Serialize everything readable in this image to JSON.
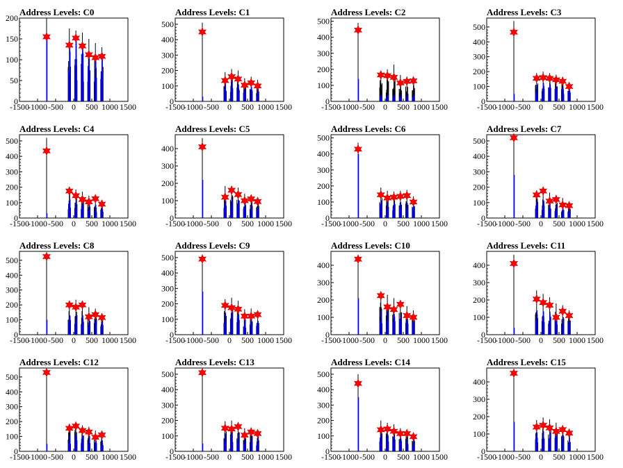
{
  "x_tick_labels": [
    "-1500",
    "-1000",
    "-500",
    "0",
    "500",
    "1000",
    "1500"
  ],
  "colors": {
    "raw": "#000000",
    "selected": "#0000ff",
    "marker": "#ff0000"
  },
  "chart_data": [
    {
      "type": "bar",
      "title": "Address Levels: C0",
      "xlim": [
        -1500,
        1500
      ],
      "ylim": [
        0,
        200
      ],
      "yticks": [
        0,
        50,
        100,
        150,
        200
      ],
      "peaks": [
        {
          "x": -750,
          "black": 200,
          "blue": 150,
          "star": 155
        },
        {
          "x": -120,
          "black": 175,
          "blue": 140,
          "star": 135
        },
        {
          "x": 60,
          "black": 170,
          "blue": 145,
          "star": 152
        },
        {
          "x": 240,
          "black": 165,
          "blue": 130,
          "star": 133
        },
        {
          "x": 420,
          "black": 150,
          "blue": 110,
          "star": 112
        },
        {
          "x": 600,
          "black": 140,
          "blue": 100,
          "star": 105
        },
        {
          "x": 780,
          "black": 130,
          "blue": 105,
          "star": 108
        }
      ]
    },
    {
      "type": "bar",
      "title": "Address Levels: C1",
      "xlim": [
        -1500,
        1500
      ],
      "ylim": [
        0,
        540
      ],
      "yticks": [
        0,
        100,
        200,
        300,
        400,
        500
      ],
      "peaks": [
        {
          "x": -750,
          "black": 510,
          "blue": 30,
          "star": 450
        },
        {
          "x": -120,
          "black": 190,
          "blue": 120,
          "star": 135
        },
        {
          "x": 60,
          "black": 210,
          "blue": 130,
          "star": 160
        },
        {
          "x": 240,
          "black": 200,
          "blue": 110,
          "star": 145
        },
        {
          "x": 420,
          "black": 150,
          "blue": 85,
          "star": 105
        },
        {
          "x": 600,
          "black": 160,
          "blue": 95,
          "star": 120
        },
        {
          "x": 780,
          "black": 140,
          "blue": 70,
          "star": 100
        }
      ]
    },
    {
      "type": "bar",
      "title": "Address Levels: C2",
      "xlim": [
        -1500,
        1500
      ],
      "ylim": [
        0,
        520
      ],
      "yticks": [
        0,
        100,
        200,
        300,
        400,
        500
      ],
      "peaks": [
        {
          "x": -750,
          "black": 490,
          "blue": 140,
          "star": 445
        },
        {
          "x": -120,
          "black": 190,
          "blue": 40,
          "star": 165
        },
        {
          "x": 60,
          "black": 200,
          "blue": 40,
          "star": 160
        },
        {
          "x": 240,
          "black": 230,
          "blue": 40,
          "star": 150
        },
        {
          "x": 420,
          "black": 165,
          "blue": 40,
          "star": 115
        },
        {
          "x": 600,
          "black": 155,
          "blue": 40,
          "star": 125
        },
        {
          "x": 780,
          "black": 145,
          "blue": 40,
          "star": 128
        }
      ]
    },
    {
      "type": "bar",
      "title": "Address Levels: C3",
      "xlim": [
        -1500,
        1500
      ],
      "ylim": [
        0,
        560
      ],
      "yticks": [
        0,
        100,
        200,
        300,
        400,
        500
      ],
      "peaks": [
        {
          "x": -750,
          "black": 540,
          "blue": 50,
          "star": 465
        },
        {
          "x": -120,
          "black": 190,
          "blue": 110,
          "star": 155
        },
        {
          "x": 60,
          "black": 200,
          "blue": 120,
          "star": 160
        },
        {
          "x": 240,
          "black": 190,
          "blue": 110,
          "star": 155
        },
        {
          "x": 420,
          "black": 180,
          "blue": 100,
          "star": 145
        },
        {
          "x": 600,
          "black": 165,
          "blue": 95,
          "star": 135
        },
        {
          "x": 780,
          "black": 130,
          "blue": 80,
          "star": 100
        }
      ]
    },
    {
      "type": "bar",
      "title": "Address Levels: C4",
      "xlim": [
        -1500,
        1500
      ],
      "ylim": [
        0,
        540
      ],
      "yticks": [
        0,
        100,
        200,
        300,
        400,
        500
      ],
      "peaks": [
        {
          "x": -750,
          "black": 520,
          "blue": 30,
          "star": 435
        },
        {
          "x": -120,
          "black": 200,
          "blue": 120,
          "star": 175
        },
        {
          "x": 60,
          "black": 185,
          "blue": 110,
          "star": 145
        },
        {
          "x": 240,
          "black": 170,
          "blue": 100,
          "star": 120
        },
        {
          "x": 420,
          "black": 145,
          "blue": 90,
          "star": 105
        },
        {
          "x": 600,
          "black": 150,
          "blue": 85,
          "star": 125
        },
        {
          "x": 780,
          "black": 115,
          "blue": 70,
          "star": 90
        }
      ]
    },
    {
      "type": "bar",
      "title": "Address Levels: C5",
      "xlim": [
        -1500,
        1500
      ],
      "ylim": [
        0,
        480
      ],
      "yticks": [
        0,
        100,
        200,
        300,
        400
      ],
      "peaks": [
        {
          "x": -750,
          "black": 460,
          "blue": 220,
          "star": 410
        },
        {
          "x": -120,
          "black": 185,
          "blue": 110,
          "star": 120
        },
        {
          "x": 60,
          "black": 185,
          "blue": 110,
          "star": 160
        },
        {
          "x": 240,
          "black": 175,
          "blue": 105,
          "star": 135
        },
        {
          "x": 420,
          "black": 140,
          "blue": 80,
          "star": 100
        },
        {
          "x": 600,
          "black": 135,
          "blue": 75,
          "star": 110
        },
        {
          "x": 780,
          "black": 120,
          "blue": 65,
          "star": 95
        }
      ]
    },
    {
      "type": "bar",
      "title": "Address Levels: C6",
      "xlim": [
        -1500,
        1500
      ],
      "ylim": [
        0,
        520
      ],
      "yticks": [
        0,
        100,
        200,
        300,
        400,
        500
      ],
      "peaks": [
        {
          "x": -750,
          "black": 470,
          "blue": 400,
          "star": 430
        },
        {
          "x": -120,
          "black": 190,
          "blue": 110,
          "star": 145
        },
        {
          "x": 60,
          "black": 170,
          "blue": 100,
          "star": 125
        },
        {
          "x": 240,
          "black": 165,
          "blue": 95,
          "star": 130
        },
        {
          "x": 420,
          "black": 170,
          "blue": 100,
          "star": 135
        },
        {
          "x": 600,
          "black": 175,
          "blue": 95,
          "star": 140
        },
        {
          "x": 780,
          "black": 135,
          "blue": 75,
          "star": 100
        }
      ]
    },
    {
      "type": "bar",
      "title": "Address Levels: C7",
      "xlim": [
        -1500,
        1500
      ],
      "ylim": [
        0,
        540
      ],
      "yticks": [
        0,
        100,
        200,
        300,
        400,
        500
      ],
      "peaks": [
        {
          "x": -750,
          "black": 530,
          "blue": 280,
          "star": 520
        },
        {
          "x": -120,
          "black": 180,
          "blue": 110,
          "star": 150
        },
        {
          "x": 60,
          "black": 190,
          "blue": 115,
          "star": 175
        },
        {
          "x": 240,
          "black": 165,
          "blue": 100,
          "star": 110
        },
        {
          "x": 420,
          "black": 150,
          "blue": 90,
          "star": 120
        },
        {
          "x": 600,
          "black": 130,
          "blue": 75,
          "star": 85
        },
        {
          "x": 780,
          "black": 105,
          "blue": 65,
          "star": 80
        }
      ]
    },
    {
      "type": "bar",
      "title": "Address Levels: C8",
      "xlim": [
        -1500,
        1500
      ],
      "ylim": [
        0,
        560
      ],
      "yticks": [
        0,
        100,
        200,
        300,
        400,
        500
      ],
      "peaks": [
        {
          "x": -750,
          "black": 540,
          "blue": 100,
          "star": 525
        },
        {
          "x": -120,
          "black": 220,
          "blue": 130,
          "star": 200
        },
        {
          "x": 60,
          "black": 235,
          "blue": 135,
          "star": 185
        },
        {
          "x": 240,
          "black": 225,
          "blue": 130,
          "star": 200
        },
        {
          "x": 420,
          "black": 185,
          "blue": 110,
          "star": 120
        },
        {
          "x": 600,
          "black": 175,
          "blue": 100,
          "star": 135
        },
        {
          "x": 780,
          "black": 145,
          "blue": 85,
          "star": 115
        }
      ]
    },
    {
      "type": "bar",
      "title": "Address Levels: C9",
      "xlim": [
        -1500,
        1500
      ],
      "ylim": [
        0,
        540
      ],
      "yticks": [
        0,
        100,
        200,
        300,
        400,
        500
      ],
      "peaks": [
        {
          "x": -750,
          "black": 520,
          "blue": 280,
          "star": 490
        },
        {
          "x": -120,
          "black": 230,
          "blue": 140,
          "star": 190
        },
        {
          "x": 60,
          "black": 240,
          "blue": 145,
          "star": 175
        },
        {
          "x": 240,
          "black": 220,
          "blue": 130,
          "star": 165
        },
        {
          "x": 420,
          "black": 165,
          "blue": 100,
          "star": 120
        },
        {
          "x": 600,
          "black": 170,
          "blue": 100,
          "star": 120
        },
        {
          "x": 780,
          "black": 150,
          "blue": 90,
          "star": 130
        }
      ]
    },
    {
      "type": "bar",
      "title": "Address Levels: C10",
      "xlim": [
        -1500,
        1500
      ],
      "ylim": [
        0,
        480
      ],
      "yticks": [
        0,
        100,
        200,
        300,
        400
      ],
      "peaks": [
        {
          "x": -750,
          "black": 460,
          "blue": 210,
          "star": 435
        },
        {
          "x": -120,
          "black": 240,
          "blue": 140,
          "star": 225
        },
        {
          "x": 60,
          "black": 230,
          "blue": 135,
          "star": 160
        },
        {
          "x": 240,
          "black": 210,
          "blue": 120,
          "star": 145
        },
        {
          "x": 420,
          "black": 190,
          "blue": 110,
          "star": 175
        },
        {
          "x": 600,
          "black": 165,
          "blue": 95,
          "star": 110
        },
        {
          "x": 780,
          "black": 140,
          "blue": 80,
          "star": 100
        }
      ]
    },
    {
      "type": "bar",
      "title": "Address Levels: C11",
      "xlim": [
        -1500,
        1500
      ],
      "ylim": [
        0,
        480
      ],
      "yticks": [
        0,
        100,
        200,
        300,
        400
      ],
      "peaks": [
        {
          "x": -750,
          "black": 460,
          "blue": 40,
          "star": 410
        },
        {
          "x": -120,
          "black": 255,
          "blue": 140,
          "star": 205
        },
        {
          "x": 60,
          "black": 235,
          "blue": 135,
          "star": 185
        },
        {
          "x": 240,
          "black": 215,
          "blue": 120,
          "star": 170
        },
        {
          "x": 420,
          "black": 180,
          "blue": 105,
          "star": 100
        },
        {
          "x": 600,
          "black": 170,
          "blue": 95,
          "star": 135
        },
        {
          "x": 780,
          "black": 140,
          "blue": 80,
          "star": 110
        }
      ]
    },
    {
      "type": "bar",
      "title": "Address Levels: C12",
      "xlim": [
        -1500,
        1500
      ],
      "ylim": [
        0,
        560
      ],
      "yticks": [
        0,
        100,
        200,
        300,
        400,
        500
      ],
      "peaks": [
        {
          "x": -750,
          "black": 540,
          "blue": 50,
          "star": 530
        },
        {
          "x": -120,
          "black": 185,
          "blue": 110,
          "star": 155
        },
        {
          "x": 60,
          "black": 195,
          "blue": 115,
          "star": 170
        },
        {
          "x": 240,
          "black": 175,
          "blue": 105,
          "star": 140
        },
        {
          "x": 420,
          "black": 165,
          "blue": 95,
          "star": 130
        },
        {
          "x": 600,
          "black": 140,
          "blue": 80,
          "star": 95
        },
        {
          "x": 780,
          "black": 130,
          "blue": 75,
          "star": 110
        }
      ]
    },
    {
      "type": "bar",
      "title": "Address Levels: C13",
      "xlim": [
        -1500,
        1500
      ],
      "ylim": [
        0,
        540
      ],
      "yticks": [
        0,
        100,
        200,
        300,
        400,
        500
      ],
      "peaks": [
        {
          "x": -750,
          "black": 530,
          "blue": 50,
          "star": 510
        },
        {
          "x": -120,
          "black": 195,
          "blue": 115,
          "star": 150
        },
        {
          "x": 60,
          "black": 200,
          "blue": 120,
          "star": 145
        },
        {
          "x": 240,
          "black": 190,
          "blue": 110,
          "star": 160
        },
        {
          "x": 420,
          "black": 150,
          "blue": 90,
          "star": 105
        },
        {
          "x": 600,
          "black": 155,
          "blue": 90,
          "star": 125
        },
        {
          "x": 780,
          "black": 140,
          "blue": 80,
          "star": 115
        }
      ]
    },
    {
      "type": "bar",
      "title": "Address Levels: C14",
      "xlim": [
        -1500,
        1500
      ],
      "ylim": [
        0,
        540
      ],
      "yticks": [
        0,
        100,
        200,
        300,
        400,
        500
      ],
      "peaks": [
        {
          "x": -750,
          "black": 500,
          "blue": 350,
          "star": 440
        },
        {
          "x": -120,
          "black": 200,
          "blue": 115,
          "star": 140
        },
        {
          "x": 60,
          "black": 185,
          "blue": 110,
          "star": 145
        },
        {
          "x": 240,
          "black": 175,
          "blue": 100,
          "star": 130
        },
        {
          "x": 420,
          "black": 150,
          "blue": 90,
          "star": 115
        },
        {
          "x": 600,
          "black": 140,
          "blue": 80,
          "star": 115
        },
        {
          "x": 780,
          "black": 115,
          "blue": 70,
          "star": 95
        }
      ]
    },
    {
      "type": "bar",
      "title": "Address Levels: C15",
      "xlim": [
        -1500,
        1500
      ],
      "ylim": [
        0,
        480
      ],
      "yticks": [
        0,
        100,
        200,
        300,
        400
      ],
      "peaks": [
        {
          "x": -750,
          "black": 470,
          "blue": 170,
          "star": 450
        },
        {
          "x": -120,
          "black": 180,
          "blue": 110,
          "star": 140
        },
        {
          "x": 60,
          "black": 195,
          "blue": 115,
          "star": 150
        },
        {
          "x": 240,
          "black": 185,
          "blue": 110,
          "star": 135
        },
        {
          "x": 420,
          "black": 165,
          "blue": 100,
          "star": 115
        },
        {
          "x": 600,
          "black": 150,
          "blue": 90,
          "star": 125
        },
        {
          "x": 780,
          "black": 130,
          "blue": 75,
          "star": 105
        }
      ]
    }
  ]
}
